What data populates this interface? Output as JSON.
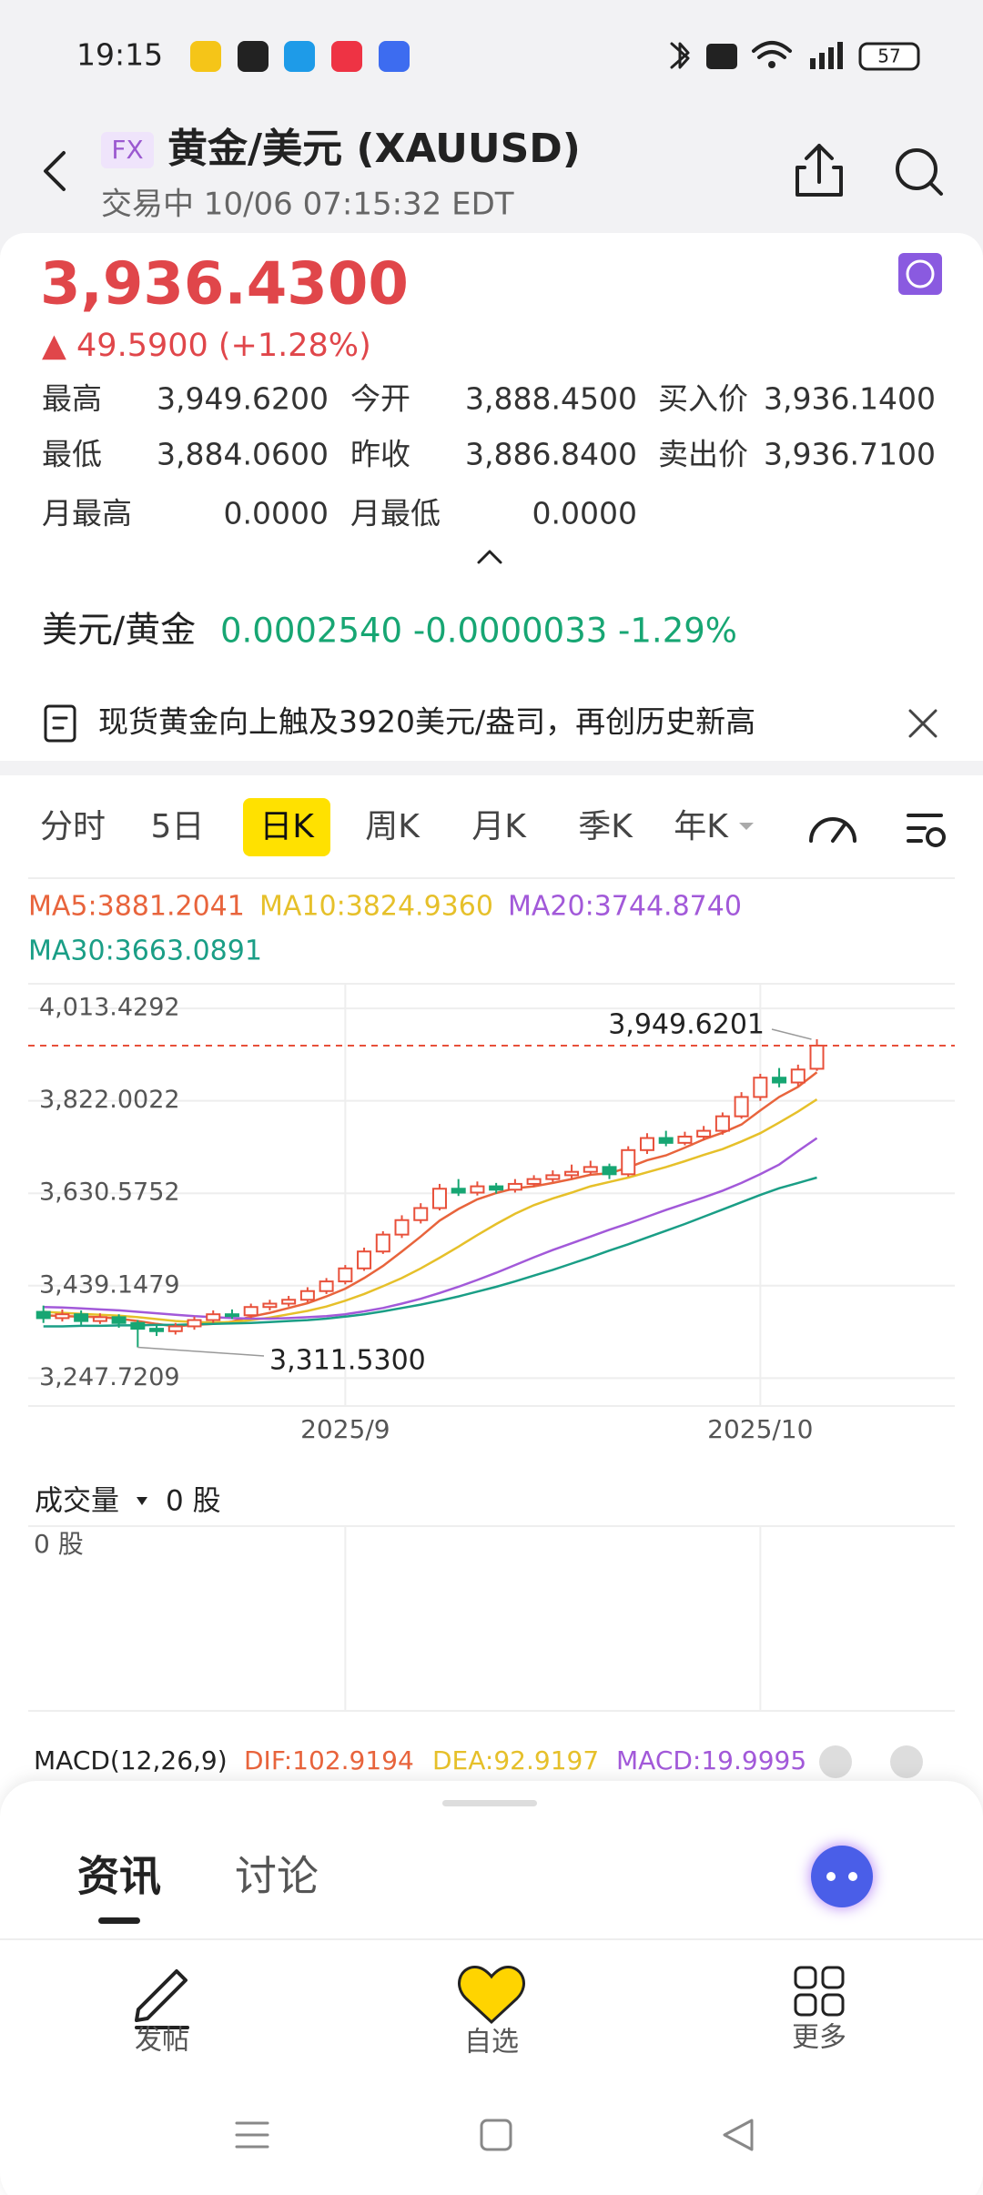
{
  "status_bar": {
    "time": "19:15",
    "battery": "57"
  },
  "header": {
    "badge": "FX",
    "title": "黄金/美元 (XAUUSD)",
    "subtitle": "交易中 10/06 07:15:32 EDT"
  },
  "quote": {
    "price": "3,936.4300",
    "change": "▲ 49.5900 (+1.28%)",
    "stats": [
      [
        "最高",
        "3,949.6200",
        "今开",
        "3,888.4500",
        "买入价",
        "3,936.1400"
      ],
      [
        "最低",
        "3,884.0600",
        "昨收",
        "3,886.8400",
        "卖出价",
        "3,936.7100"
      ],
      [
        "月最高",
        "0.0000",
        "月最低",
        "0.0000"
      ]
    ]
  },
  "inverse": {
    "label": "美元/黄金",
    "value": "0.0002540 -0.0000033 -1.29%"
  },
  "news": "现货黄金向上触及3920美元/盎司，再创历史新高",
  "tabs": [
    "分时",
    "5日",
    "日K",
    "周K",
    "月K",
    "季K",
    "年K"
  ],
  "active_tab": 2,
  "chart_data": {
    "type": "candlestick",
    "categories": [
      null,
      null,
      null,
      null,
      null,
      null,
      null,
      null,
      null,
      null,
      null,
      null,
      null,
      null,
      null,
      null,
      "2025/9",
      null,
      null,
      null,
      null,
      null,
      null,
      null,
      null,
      null,
      null,
      null,
      null,
      null,
      null,
      null,
      null,
      null,
      null,
      null,
      null,
      null,
      "2025/10",
      null,
      null,
      null
    ],
    "open": [
      3385,
      3372,
      3380,
      3366,
      3374,
      3362,
      3350,
      3345,
      3355,
      3368,
      3380,
      3378,
      3395,
      3402,
      3410,
      3428,
      3448,
      3475,
      3510,
      3545,
      3575,
      3600,
      3640,
      3632,
      3645,
      3638,
      3650,
      3660,
      3668,
      3675,
      3685,
      3670,
      3720,
      3745,
      3735,
      3748,
      3760,
      3790,
      3830,
      3870,
      3860,
      3888.45
    ],
    "high": [
      3398,
      3390,
      3388,
      3382,
      3380,
      3368,
      3358,
      3362,
      3375,
      3388,
      3390,
      3402,
      3410,
      3418,
      3436,
      3455,
      3482,
      3518,
      3552,
      3585,
      3610,
      3650,
      3660,
      3655,
      3652,
      3660,
      3668,
      3678,
      3690,
      3698,
      3692,
      3728,
      3755,
      3760,
      3758,
      3770,
      3798,
      3840,
      3878,
      3890,
      3897,
      3949.6201
    ],
    "low": [
      3362,
      3365,
      3358,
      3360,
      3352,
      3311.53,
      3335,
      3338,
      3348,
      3362,
      3370,
      3372,
      3388,
      3396,
      3405,
      3422,
      3442,
      3470,
      3505,
      3538,
      3568,
      3595,
      3625,
      3626,
      3630,
      3632,
      3644,
      3654,
      3660,
      3668,
      3660,
      3665,
      3712,
      3728,
      3730,
      3740,
      3752,
      3785,
      3822,
      3850,
      3852,
      3884.06
    ],
    "close": [
      3372,
      3380,
      3366,
      3374,
      3362,
      3350,
      3345,
      3355,
      3368,
      3380,
      3378,
      3395,
      3402,
      3410,
      3428,
      3448,
      3475,
      3510,
      3545,
      3575,
      3600,
      3640,
      3632,
      3645,
      3638,
      3650,
      3660,
      3668,
      3675,
      3685,
      3670,
      3720,
      3745,
      3735,
      3748,
      3760,
      3790,
      3830,
      3870,
      3860,
      3886.84,
      3936.43
    ],
    "up_color": "#e8503a",
    "down_color": "#17a673",
    "series": [
      {
        "name": "MA5:3881.2041",
        "color": "#e8643c",
        "values": [
          3378,
          3376,
          3375,
          3374,
          3371,
          3366,
          3360,
          3355,
          3358,
          3360,
          3365,
          3375,
          3383,
          3393,
          3403,
          3417,
          3433,
          3455,
          3480,
          3510,
          3541,
          3574,
          3598,
          3618,
          3631,
          3641,
          3645,
          3652,
          3660,
          3669,
          3672,
          3684,
          3699,
          3709,
          3725,
          3742,
          3756,
          3773,
          3802,
          3830,
          3851,
          3881.2041
        ]
      },
      {
        "name": "MA10:3824.9360",
        "color": "#e6c02a",
        "values": [
          3385,
          3383,
          3381,
          3379,
          3377,
          3374,
          3370,
          3366,
          3364,
          3363,
          3364,
          3368,
          3373,
          3380,
          3387,
          3396,
          3408,
          3422,
          3438,
          3455,
          3475,
          3497,
          3520,
          3544,
          3567,
          3588,
          3606,
          3620,
          3632,
          3645,
          3654,
          3663,
          3674,
          3685,
          3697,
          3710,
          3722,
          3738,
          3755,
          3777,
          3800,
          3824.936
        ]
      },
      {
        "name": "MA20:3744.8740",
        "color": "#a259d9",
        "values": [
          3395,
          3394,
          3392,
          3390,
          3388,
          3385,
          3382,
          3379,
          3376,
          3374,
          3372,
          3371,
          3371,
          3372,
          3374,
          3376,
          3380,
          3386,
          3393,
          3402,
          3412,
          3424,
          3437,
          3451,
          3466,
          3482,
          3498,
          3513,
          3527,
          3541,
          3555,
          3568,
          3582,
          3596,
          3609,
          3622,
          3636,
          3652,
          3670,
          3690,
          3718,
          3744.874
        ]
      },
      {
        "name": "MA30:3663.0891",
        "color": "#1a9e86",
        "values": [
          3355,
          3355,
          3356,
          3356,
          3357,
          3357,
          3358,
          3358,
          3359,
          3360,
          3361,
          3362,
          3364,
          3366,
          3368,
          3371,
          3375,
          3380,
          3386,
          3393,
          3400,
          3408,
          3417,
          3427,
          3437,
          3448,
          3460,
          3472,
          3485,
          3498,
          3512,
          3525,
          3539,
          3553,
          3567,
          3582,
          3597,
          3612,
          3627,
          3641,
          3652,
          3663.0891
        ]
      }
    ],
    "annotations": [
      "3,949.6201",
      "3,311.5300"
    ],
    "ylim": [
      3190,
      4057
    ],
    "yticks": [
      {
        "value": 4013.4292,
        "label": "4,013.4292"
      },
      {
        "value": 3822.0022,
        "label": "3,822.0022"
      },
      {
        "value": 3630.5752,
        "label": "3,630.5752"
      },
      {
        "value": 3439.1479,
        "label": "3,439.1479"
      },
      {
        "value": 3247.7209,
        "label": "3,247.7209"
      }
    ],
    "grid": true
  },
  "volume": {
    "label": "成交量",
    "value": "0 股",
    "axis_label": "0 股"
  },
  "macd": {
    "label": "MACD(12,26,9)",
    "dif": "DIF:102.9194",
    "dea": "DEA:92.9197",
    "macd": "MACD:19.9995"
  },
  "bottom_tabs": [
    "资讯",
    "讨论"
  ],
  "nav": [
    "发帖",
    "自选",
    "更多"
  ]
}
